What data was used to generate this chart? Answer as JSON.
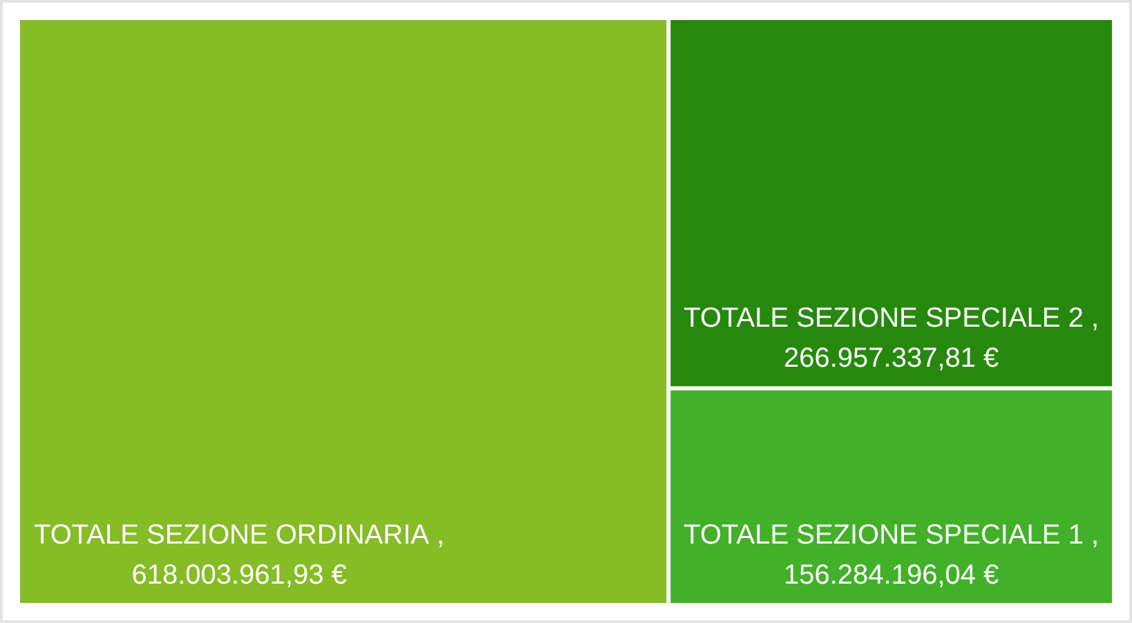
{
  "chart_data": {
    "type": "other",
    "categories": [
      "TOTALE SEZIONE ORDINARIA",
      "TOTALE SEZIONE SPECIALE 2",
      "TOTALE SEZIONE SPECIALE 1"
    ],
    "values": [
      618003961.93,
      266957337.81,
      156284196.04
    ],
    "value_labels": [
      "618.003.961,93 €",
      "266.957.337,81 €",
      "156.284.196,04 €"
    ],
    "annotations": [
      ",",
      ",",
      ","
    ],
    "colors": [
      "#86bc25",
      "#26890d",
      "#43b02a"
    ]
  }
}
